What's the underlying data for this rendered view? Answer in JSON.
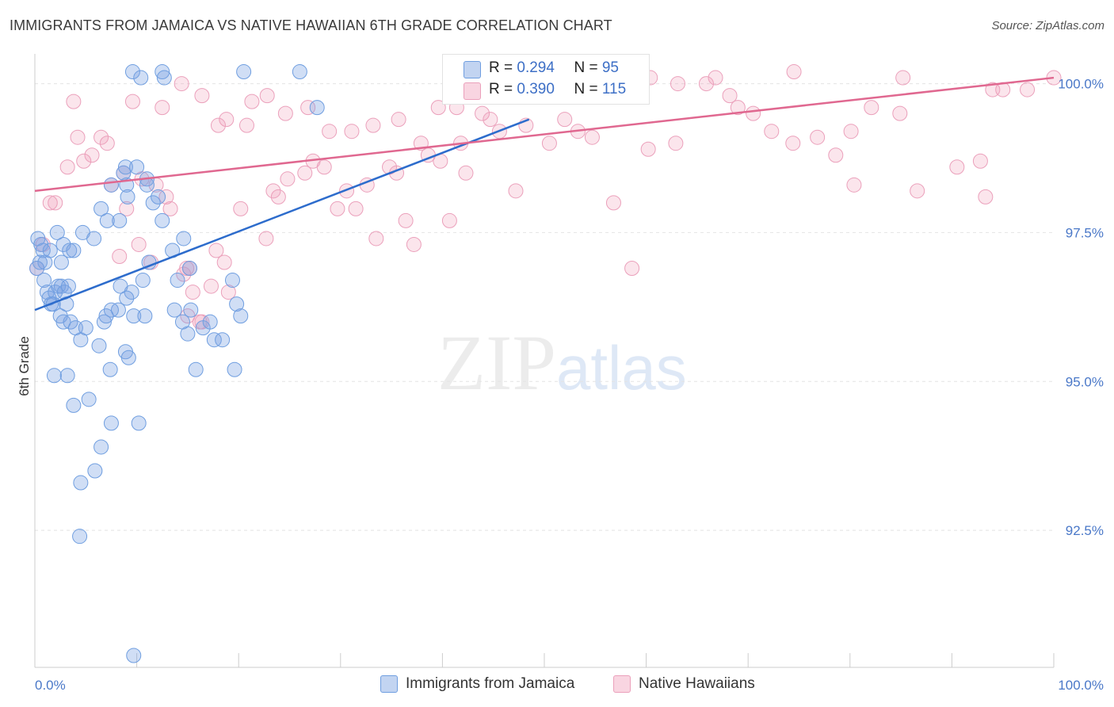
{
  "header": {
    "title": "IMMIGRANTS FROM JAMAICA VS NATIVE HAWAIIAN 6TH GRADE CORRELATION CHART",
    "source": "Source: ZipAtlas.com"
  },
  "watermark": {
    "zip": "ZIP",
    "atlas": "atlas"
  },
  "legend_box": {
    "rows": [
      {
        "r_label": "R = ",
        "r_value": "0.294",
        "n_label": "N = ",
        "n_value": "95"
      },
      {
        "r_label": "R = ",
        "r_value": "0.390",
        "n_label": "N = ",
        "n_value": "115"
      }
    ]
  },
  "bottom_legend": {
    "items": [
      "Immigrants from Jamaica",
      "Native Hawaiians"
    ]
  },
  "colors": {
    "blue": "#4a78c8",
    "blue_fill": "rgba(120,160,225,0.35)",
    "blue_stroke": "#6f9ee0",
    "blue_line": "#2d6ccc",
    "pink_fill": "rgba(240,150,180,0.25)",
    "pink_stroke": "#eba0bb",
    "pink_line": "#e06890",
    "grid": "#e4e4e4"
  },
  "chart_data": {
    "type": "scatter",
    "title": "IMMIGRANTS FROM JAMAICA VS NATIVE HAWAIIAN 6TH GRADE CORRELATION CHART",
    "xlabel": "",
    "ylabel": "6th Grade",
    "xlim": [
      0,
      100
    ],
    "ylim": [
      90.2,
      100.5
    ],
    "x_ticks": [
      "0.0%",
      "100.0%"
    ],
    "y_ticks": [
      {
        "value": 100.0,
        "label": "100.0%"
      },
      {
        "value": 97.5,
        "label": "97.5%"
      },
      {
        "value": 95.0,
        "label": "95.0%"
      },
      {
        "value": 92.5,
        "label": "92.5%"
      }
    ],
    "series": [
      {
        "name": "Immigrants from Jamaica",
        "R": 0.294,
        "N": 95,
        "trend": {
          "x": [
            0,
            48.5
          ],
          "y": [
            96.2,
            99.4
          ]
        },
        "points": [
          [
            0.3,
            97.4
          ],
          [
            0.6,
            97.3
          ],
          [
            0.8,
            97.2
          ],
          [
            0.5,
            97.0
          ],
          [
            0.9,
            96.7
          ],
          [
            1.2,
            96.5
          ],
          [
            1.4,
            96.4
          ],
          [
            1.6,
            96.3
          ],
          [
            1.0,
            97.0
          ],
          [
            2.0,
            96.5
          ],
          [
            2.3,
            96.6
          ],
          [
            2.6,
            96.6
          ],
          [
            2.9,
            96.5
          ],
          [
            3.3,
            96.6
          ],
          [
            1.8,
            96.3
          ],
          [
            2.5,
            96.1
          ],
          [
            2.8,
            96.0
          ],
          [
            3.5,
            96.0
          ],
          [
            4.0,
            95.9
          ],
          [
            4.5,
            95.7
          ],
          [
            5.0,
            95.9
          ],
          [
            1.5,
            97.2
          ],
          [
            2.2,
            97.5
          ],
          [
            2.8,
            97.3
          ],
          [
            3.4,
            97.2
          ],
          [
            3.8,
            97.2
          ],
          [
            4.7,
            97.5
          ],
          [
            5.8,
            97.4
          ],
          [
            6.5,
            97.9
          ],
          [
            7.1,
            97.7
          ],
          [
            8.3,
            97.7
          ],
          [
            9.1,
            98.1
          ],
          [
            7.5,
            98.3
          ],
          [
            8.7,
            98.5
          ],
          [
            8.9,
            98.6
          ],
          [
            10.0,
            98.6
          ],
          [
            11.0,
            98.3
          ],
          [
            11.6,
            98.0
          ],
          [
            12.1,
            98.1
          ],
          [
            12.5,
            97.7
          ],
          [
            13.5,
            97.2
          ],
          [
            14.6,
            97.4
          ],
          [
            15.2,
            96.9
          ],
          [
            14.0,
            96.7
          ],
          [
            13.7,
            96.2
          ],
          [
            15.3,
            96.2
          ],
          [
            14.5,
            96.0
          ],
          [
            15.0,
            95.8
          ],
          [
            16.5,
            95.9
          ],
          [
            17.2,
            96.0
          ],
          [
            17.6,
            95.7
          ],
          [
            18.4,
            95.7
          ],
          [
            19.4,
            96.7
          ],
          [
            19.8,
            96.3
          ],
          [
            20.2,
            96.1
          ],
          [
            9.5,
            96.5
          ],
          [
            9.0,
            96.4
          ],
          [
            8.2,
            96.2
          ],
          [
            7.5,
            96.2
          ],
          [
            6.8,
            96.0
          ],
          [
            7.0,
            96.1
          ],
          [
            9.7,
            96.1
          ],
          [
            10.8,
            96.1
          ],
          [
            8.4,
            96.6
          ],
          [
            10.6,
            96.7
          ],
          [
            11.2,
            97.0
          ],
          [
            6.3,
            95.6
          ],
          [
            8.9,
            95.5
          ],
          [
            9.2,
            95.4
          ],
          [
            7.4,
            95.2
          ],
          [
            1.9,
            95.1
          ],
          [
            3.2,
            95.1
          ],
          [
            3.8,
            94.6
          ],
          [
            5.3,
            94.7
          ],
          [
            7.5,
            94.3
          ],
          [
            10.2,
            94.3
          ],
          [
            6.5,
            93.9
          ],
          [
            5.9,
            93.5
          ],
          [
            4.5,
            93.3
          ],
          [
            4.4,
            92.4
          ],
          [
            15.8,
            95.2
          ],
          [
            19.6,
            95.2
          ],
          [
            9.7,
            90.4
          ],
          [
            12.5,
            100.2
          ],
          [
            9.6,
            100.2
          ],
          [
            10.4,
            100.1
          ],
          [
            12.7,
            100.1
          ],
          [
            20.5,
            100.2
          ],
          [
            26.0,
            100.2
          ],
          [
            27.7,
            99.6
          ],
          [
            9.0,
            98.3
          ],
          [
            11.0,
            98.4
          ],
          [
            2.6,
            97.0
          ],
          [
            0.2,
            96.9
          ],
          [
            3.1,
            96.3
          ]
        ]
      },
      {
        "name": "Native Hawaiians",
        "R": 0.39,
        "N": 115,
        "trend": {
          "x": [
            0,
            100
          ],
          "y": [
            98.2,
            100.1
          ]
        },
        "points": [
          [
            0.2,
            96.9
          ],
          [
            0.8,
            97.3
          ],
          [
            1.5,
            98.0
          ],
          [
            2.0,
            98.0
          ],
          [
            3.2,
            98.6
          ],
          [
            4.8,
            98.7
          ],
          [
            5.6,
            98.8
          ],
          [
            6.5,
            99.1
          ],
          [
            3.8,
            99.7
          ],
          [
            7.5,
            98.3
          ],
          [
            8.7,
            98.5
          ],
          [
            10.5,
            98.4
          ],
          [
            11.9,
            98.3
          ],
          [
            12.9,
            98.1
          ],
          [
            13.3,
            97.9
          ],
          [
            10.2,
            97.3
          ],
          [
            8.3,
            97.1
          ],
          [
            9.0,
            97.9
          ],
          [
            11.4,
            97.0
          ],
          [
            14.9,
            96.9
          ],
          [
            14.6,
            96.8
          ],
          [
            15.0,
            96.1
          ],
          [
            16.2,
            96.0
          ],
          [
            17.3,
            96.6
          ],
          [
            19.0,
            96.5
          ],
          [
            15.5,
            96.5
          ],
          [
            15.2,
            96.9
          ],
          [
            16.4,
            96.0
          ],
          [
            17.8,
            97.2
          ],
          [
            18.6,
            97.0
          ],
          [
            20.2,
            97.9
          ],
          [
            22.7,
            97.4
          ],
          [
            23.9,
            98.1
          ],
          [
            24.8,
            98.4
          ],
          [
            26.5,
            98.5
          ],
          [
            27.3,
            98.7
          ],
          [
            28.4,
            98.6
          ],
          [
            29.7,
            97.9
          ],
          [
            30.6,
            98.2
          ],
          [
            31.5,
            97.9
          ],
          [
            32.6,
            98.3
          ],
          [
            33.5,
            97.4
          ],
          [
            34.8,
            98.6
          ],
          [
            35.5,
            98.5
          ],
          [
            36.4,
            97.7
          ],
          [
            37.2,
            97.3
          ],
          [
            38.6,
            98.8
          ],
          [
            39.8,
            98.7
          ],
          [
            40.7,
            97.7
          ],
          [
            41.8,
            99.0
          ],
          [
            42.3,
            98.5
          ],
          [
            43.9,
            99.5
          ],
          [
            44.7,
            99.4
          ],
          [
            45.6,
            99.2
          ],
          [
            47.2,
            98.2
          ],
          [
            48.2,
            99.3
          ],
          [
            50.5,
            99.0
          ],
          [
            52.0,
            99.4
          ],
          [
            53.3,
            99.2
          ],
          [
            54.7,
            99.1
          ],
          [
            56.8,
            98.0
          ],
          [
            58.6,
            96.9
          ],
          [
            60.2,
            98.9
          ],
          [
            62.9,
            99.0
          ],
          [
            65.9,
            100.0
          ],
          [
            68.2,
            99.8
          ],
          [
            70.5,
            99.5
          ],
          [
            72.3,
            99.2
          ],
          [
            74.4,
            99.0
          ],
          [
            76.8,
            99.1
          ],
          [
            78.6,
            98.8
          ],
          [
            80.4,
            98.3
          ],
          [
            82.1,
            99.6
          ],
          [
            84.9,
            99.5
          ],
          [
            86.6,
            98.2
          ],
          [
            90.5,
            98.6
          ],
          [
            92.8,
            98.7
          ],
          [
            95.0,
            99.9
          ],
          [
            97.4,
            99.9
          ],
          [
            100.0,
            100.1
          ],
          [
            4.2,
            99.1
          ],
          [
            7.1,
            99.0
          ],
          [
            9.6,
            99.7
          ],
          [
            12.5,
            99.6
          ],
          [
            14.4,
            100.0
          ],
          [
            16.4,
            99.8
          ],
          [
            18.8,
            99.4
          ],
          [
            21.3,
            99.7
          ],
          [
            22.8,
            99.8
          ],
          [
            24.6,
            99.5
          ],
          [
            26.8,
            99.6
          ],
          [
            28.9,
            99.2
          ],
          [
            31.1,
            99.2
          ],
          [
            33.2,
            99.3
          ],
          [
            35.7,
            99.4
          ],
          [
            37.9,
            99.0
          ],
          [
            39.6,
            99.6
          ],
          [
            41.4,
            99.6
          ],
          [
            45.6,
            99.9
          ],
          [
            47.7,
            100.1
          ],
          [
            50.7,
            100.1
          ],
          [
            55.2,
            100.1
          ],
          [
            57.6,
            100.0
          ],
          [
            60.4,
            100.1
          ],
          [
            63.1,
            100.0
          ],
          [
            66.8,
            100.1
          ],
          [
            69.0,
            99.6
          ],
          [
            74.5,
            100.2
          ],
          [
            80.1,
            99.2
          ],
          [
            85.2,
            100.1
          ],
          [
            94.0,
            99.9
          ],
          [
            93.3,
            98.1
          ],
          [
            18.0,
            99.3
          ],
          [
            20.8,
            99.3
          ],
          [
            23.4,
            98.2
          ]
        ]
      }
    ]
  }
}
